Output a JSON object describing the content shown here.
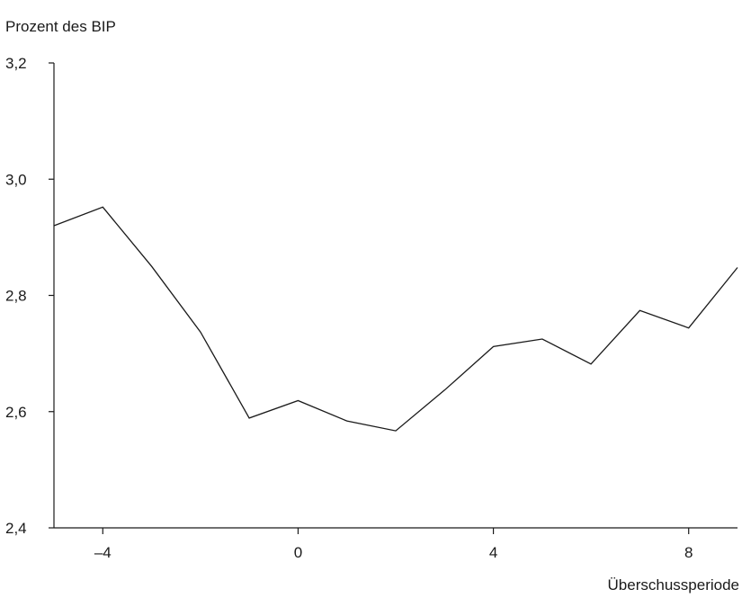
{
  "chart_data": {
    "type": "line",
    "ylabel": "Prozent des BIP",
    "xlabel": "Überschussperiode",
    "xlim": [
      -5,
      9
    ],
    "ylim": [
      2.4,
      3.2
    ],
    "x_ticks": [
      -4,
      0,
      4,
      8
    ],
    "x_tick_labels": [
      "–4",
      "0",
      "4",
      "8"
    ],
    "y_ticks": [
      2.4,
      2.6,
      2.8,
      3.0,
      3.2
    ],
    "y_tick_labels": [
      "2,4",
      "2,6",
      "2,8",
      "3,0",
      "3,2"
    ],
    "grid": false,
    "series": [
      {
        "x": [
          -5,
          -4,
          -3,
          -2,
          -1,
          0,
          1,
          2,
          3,
          4,
          5,
          6,
          7,
          8,
          9
        ],
        "values": [
          2.92,
          2.952,
          2.85,
          2.737,
          2.589,
          2.619,
          2.584,
          2.567,
          2.637,
          2.712,
          2.725,
          2.682,
          2.774,
          2.744,
          2.848
        ],
        "color": "#1a1a1a"
      }
    ]
  }
}
